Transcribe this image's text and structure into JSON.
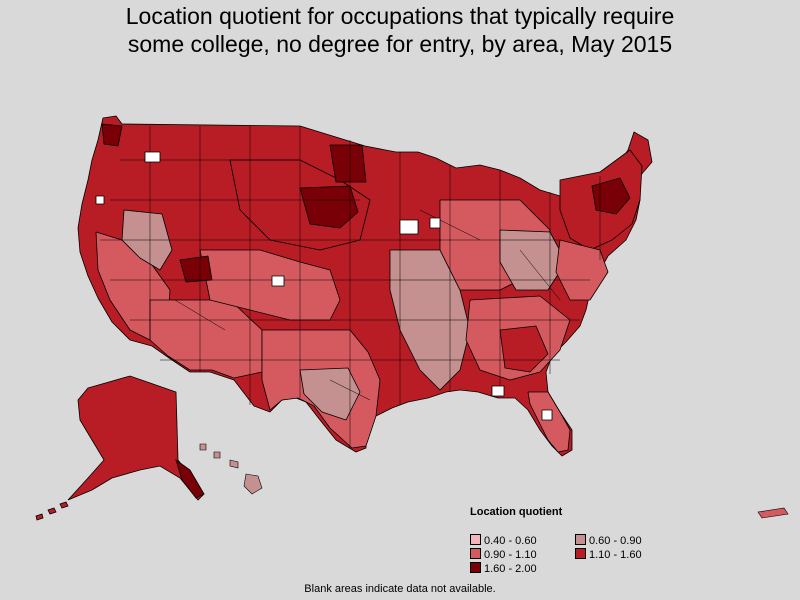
{
  "title": {
    "line1": "Location quotient for occupations that typically require",
    "line2": "some college, no degree for entry, by area, May 2015"
  },
  "legend": {
    "title": "Location quotient",
    "items": [
      {
        "label": "0.40 - 0.60",
        "color": "#f4b6bd"
      },
      {
        "label": "0.60 - 0.90",
        "color": "#c49090"
      },
      {
        "label": "0.90 - 1.10",
        "color": "#d55a5f"
      },
      {
        "label": "1.10 - 1.60",
        "color": "#b81c24"
      },
      {
        "label": "1.60 - 2.00",
        "color": "#7a0008"
      }
    ]
  },
  "footnote": "Blank areas indicate data not available.",
  "colors": {
    "background": "#d9d9d9",
    "border": "#000000",
    "no_data": "#ffffff"
  }
}
